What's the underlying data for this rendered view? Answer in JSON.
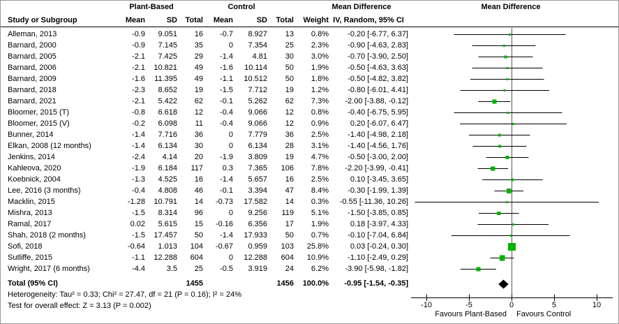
{
  "header": {
    "plant_based": "Plant-Based",
    "control": "Control",
    "mean_difference_left": "Mean Difference",
    "mean_difference_right": "Mean Difference",
    "study_or_subgroup": "Study or Subgroup",
    "mean1": "Mean",
    "sd1": "SD",
    "total1": "Total",
    "mean2": "Mean",
    "sd2": "SD",
    "total2": "Total",
    "weight": "Weight",
    "iv_random_left": "IV, Random, 95% CI",
    "iv_random_right": "IV, Random, 95% CI"
  },
  "totals": {
    "label": "Total (95% CI)",
    "pb_n": "1455",
    "c_n": "1456",
    "weight": "100.0%",
    "ci_text": "-0.95 [-1.54, -0.35]"
  },
  "footnotes": {
    "heterogeneity": "Heterogeneity: Tau² = 0.33; Chi² = 27.47, df = 21 (P = 0.16); I² = 24%",
    "overall_effect": "Test for overall effect: Z = 3.13 (P = 0.002)"
  },
  "axis": {
    "tick_labels": [
      "-10",
      "-5",
      "0",
      "5",
      "10"
    ],
    "favours_left": "Favours Plant-Based",
    "favours_right": "Favours Control"
  },
  "colors": {
    "marker_green": "#00b300",
    "diamond_black": "#000000",
    "zero_line": "#595959",
    "axis_black": "#000000"
  },
  "chart_data": {
    "type": "scatter",
    "subtype": "forest-plot",
    "title": "Mean Difference — IV, Random, 95% CI",
    "x_ticks": [
      -10,
      -5,
      0,
      5,
      10
    ],
    "xlim": [
      -11.9,
      11.9
    ],
    "xlabel_left": "Favours Plant-Based",
    "xlabel_right": "Favours Control",
    "studies": [
      {
        "name": "Alleman, 2013",
        "pb_mean": -0.9,
        "pb_sd": 9.051,
        "pb_n": 16,
        "c_mean": -0.7,
        "c_sd": 8.927,
        "c_n": 13,
        "weight_pct": 0.8,
        "md": -0.2,
        "ci_low": -6.77,
        "ci_high": 6.37
      },
      {
        "name": "Barnard, 2000",
        "pb_mean": -0.9,
        "pb_sd": 7.145,
        "pb_n": 35,
        "c_mean": 0,
        "c_sd": 7.354,
        "c_n": 25,
        "weight_pct": 2.3,
        "md": -0.9,
        "ci_low": -4.63,
        "ci_high": 2.83
      },
      {
        "name": "Barnard, 2005",
        "pb_mean": -2.1,
        "pb_sd": 7.425,
        "pb_n": 29,
        "c_mean": -1.4,
        "c_sd": 4.81,
        "c_n": 30,
        "weight_pct": 3.0,
        "md": -0.7,
        "ci_low": -3.9,
        "ci_high": 2.5
      },
      {
        "name": "Barnard, 2006",
        "pb_mean": -2.1,
        "pb_sd": 10.821,
        "pb_n": 49,
        "c_mean": -1.6,
        "c_sd": 10.114,
        "c_n": 50,
        "weight_pct": 1.9,
        "md": -0.5,
        "ci_low": -4.63,
        "ci_high": 3.63
      },
      {
        "name": "Barnard, 2009",
        "pb_mean": -1.6,
        "pb_sd": 11.395,
        "pb_n": 49,
        "c_mean": -1.1,
        "c_sd": 10.512,
        "c_n": 50,
        "weight_pct": 1.8,
        "md": -0.5,
        "ci_low": -4.82,
        "ci_high": 3.82
      },
      {
        "name": "Barnard, 2018",
        "pb_mean": -2.3,
        "pb_sd": 8.652,
        "pb_n": 19,
        "c_mean": -1.5,
        "c_sd": 7.712,
        "c_n": 19,
        "weight_pct": 1.2,
        "md": -0.8,
        "ci_low": -6.01,
        "ci_high": 4.41
      },
      {
        "name": "Barnard, 2021",
        "pb_mean": -2.1,
        "pb_sd": 5.422,
        "pb_n": 62,
        "c_mean": -0.1,
        "c_sd": 5.262,
        "c_n": 62,
        "weight_pct": 7.3,
        "md": -2.0,
        "ci_low": -3.88,
        "ci_high": -0.12
      },
      {
        "name": "Bloomer, 2015 (T)",
        "pb_mean": -0.8,
        "pb_sd": 6.618,
        "pb_n": 12,
        "c_mean": -0.4,
        "c_sd": 9.066,
        "c_n": 12,
        "weight_pct": 0.8,
        "md": -0.4,
        "ci_low": -6.75,
        "ci_high": 5.95
      },
      {
        "name": "Bloomer, 2015 (V)",
        "pb_mean": -0.2,
        "pb_sd": 6.098,
        "pb_n": 11,
        "c_mean": -0.4,
        "c_sd": 9.066,
        "c_n": 12,
        "weight_pct": 0.9,
        "md": 0.2,
        "ci_low": -6.07,
        "ci_high": 6.47
      },
      {
        "name": "Bunner, 2014",
        "pb_mean": -1.4,
        "pb_sd": 7.716,
        "pb_n": 36,
        "c_mean": 0,
        "c_sd": 7.779,
        "c_n": 36,
        "weight_pct": 2.5,
        "md": -1.4,
        "ci_low": -4.98,
        "ci_high": 2.18
      },
      {
        "name": "Elkan, 2008 (12 months)",
        "pb_mean": -1.4,
        "pb_sd": 6.134,
        "pb_n": 30,
        "c_mean": 0,
        "c_sd": 6.134,
        "c_n": 28,
        "weight_pct": 3.1,
        "md": -1.4,
        "ci_low": -4.56,
        "ci_high": 1.76
      },
      {
        "name": "Jenkins, 2014",
        "pb_mean": -2.4,
        "pb_sd": 4.14,
        "pb_n": 20,
        "c_mean": -1.9,
        "c_sd": 3.809,
        "c_n": 19,
        "weight_pct": 4.7,
        "md": -0.5,
        "ci_low": -3.0,
        "ci_high": 2.0
      },
      {
        "name": "Kahleova, 2020",
        "pb_mean": -1.9,
        "pb_sd": 6.184,
        "pb_n": 117,
        "c_mean": 0.3,
        "c_sd": 7.365,
        "c_n": 106,
        "weight_pct": 7.8,
        "md": -2.2,
        "ci_low": -3.99,
        "ci_high": -0.41
      },
      {
        "name": "Koebnick, 2004",
        "pb_mean": -1.3,
        "pb_sd": 4.525,
        "pb_n": 16,
        "c_mean": -1.4,
        "c_sd": 5.657,
        "c_n": 16,
        "weight_pct": 2.5,
        "md": 0.1,
        "ci_low": -3.45,
        "ci_high": 3.65
      },
      {
        "name": "Lee, 2016 (3 months)",
        "pb_mean": -0.4,
        "pb_sd": 4.808,
        "pb_n": 46,
        "c_mean": -0.1,
        "c_sd": 3.394,
        "c_n": 47,
        "weight_pct": 8.4,
        "md": -0.3,
        "ci_low": -1.99,
        "ci_high": 1.39
      },
      {
        "name": "Macklin, 2015",
        "pb_mean": -1.28,
        "pb_sd": 10.791,
        "pb_n": 14,
        "c_mean": -0.73,
        "c_sd": 17.582,
        "c_n": 14,
        "weight_pct": 0.3,
        "md": -0.55,
        "ci_low": -11.36,
        "ci_high": 10.26
      },
      {
        "name": "Mishra, 2013",
        "pb_mean": -1.5,
        "pb_sd": 8.314,
        "pb_n": 96,
        "c_mean": 0,
        "c_sd": 9.256,
        "c_n": 119,
        "weight_pct": 5.1,
        "md": -1.5,
        "ci_low": -3.85,
        "ci_high": 0.85
      },
      {
        "name": "Ramal, 2017",
        "pb_mean": 0.02,
        "pb_sd": 5.615,
        "pb_n": 15,
        "c_mean": -0.16,
        "c_sd": 6.356,
        "c_n": 17,
        "weight_pct": 1.9,
        "md": 0.18,
        "ci_low": -3.97,
        "ci_high": 4.33
      },
      {
        "name": "Shah, 2018 (2 months)",
        "pb_mean": -1.5,
        "pb_sd": 17.457,
        "pb_n": 50,
        "c_mean": -1.4,
        "c_sd": 17.933,
        "c_n": 50,
        "weight_pct": 0.7,
        "md": -0.1,
        "ci_low": -7.04,
        "ci_high": 6.84
      },
      {
        "name": "Sofi, 2018",
        "pb_mean": -0.64,
        "pb_sd": 1.013,
        "pb_n": 104,
        "c_mean": -0.67,
        "c_sd": 0.959,
        "c_n": 103,
        "weight_pct": 25.8,
        "md": 0.03,
        "ci_low": -0.24,
        "ci_high": 0.3
      },
      {
        "name": "Sutliffe, 2015",
        "pb_mean": -1.1,
        "pb_sd": 12.288,
        "pb_n": 604,
        "c_mean": 0,
        "c_sd": 12.288,
        "c_n": 604,
        "weight_pct": 10.9,
        "md": -1.1,
        "ci_low": -2.49,
        "ci_high": 0.29
      },
      {
        "name": "Wright, 2017 (6 months)",
        "pb_mean": -4.4,
        "pb_sd": 3.5,
        "pb_n": 25,
        "c_mean": -0.5,
        "c_sd": 3.919,
        "c_n": 24,
        "weight_pct": 6.2,
        "md": -3.9,
        "ci_low": -5.98,
        "ci_high": -1.82
      }
    ],
    "total": {
      "label": "Total (95% CI)",
      "pb_total": 1455,
      "c_total": 1456,
      "weight_pct": 100.0,
      "md": -0.95,
      "ci_low": -1.54,
      "ci_high": -0.35
    },
    "heterogeneity": {
      "tau2": 0.33,
      "chi2": 27.47,
      "df": 21,
      "p": 0.16,
      "i2_pct": 24
    },
    "overall_effect": {
      "z": 3.13,
      "p": 0.002
    }
  }
}
